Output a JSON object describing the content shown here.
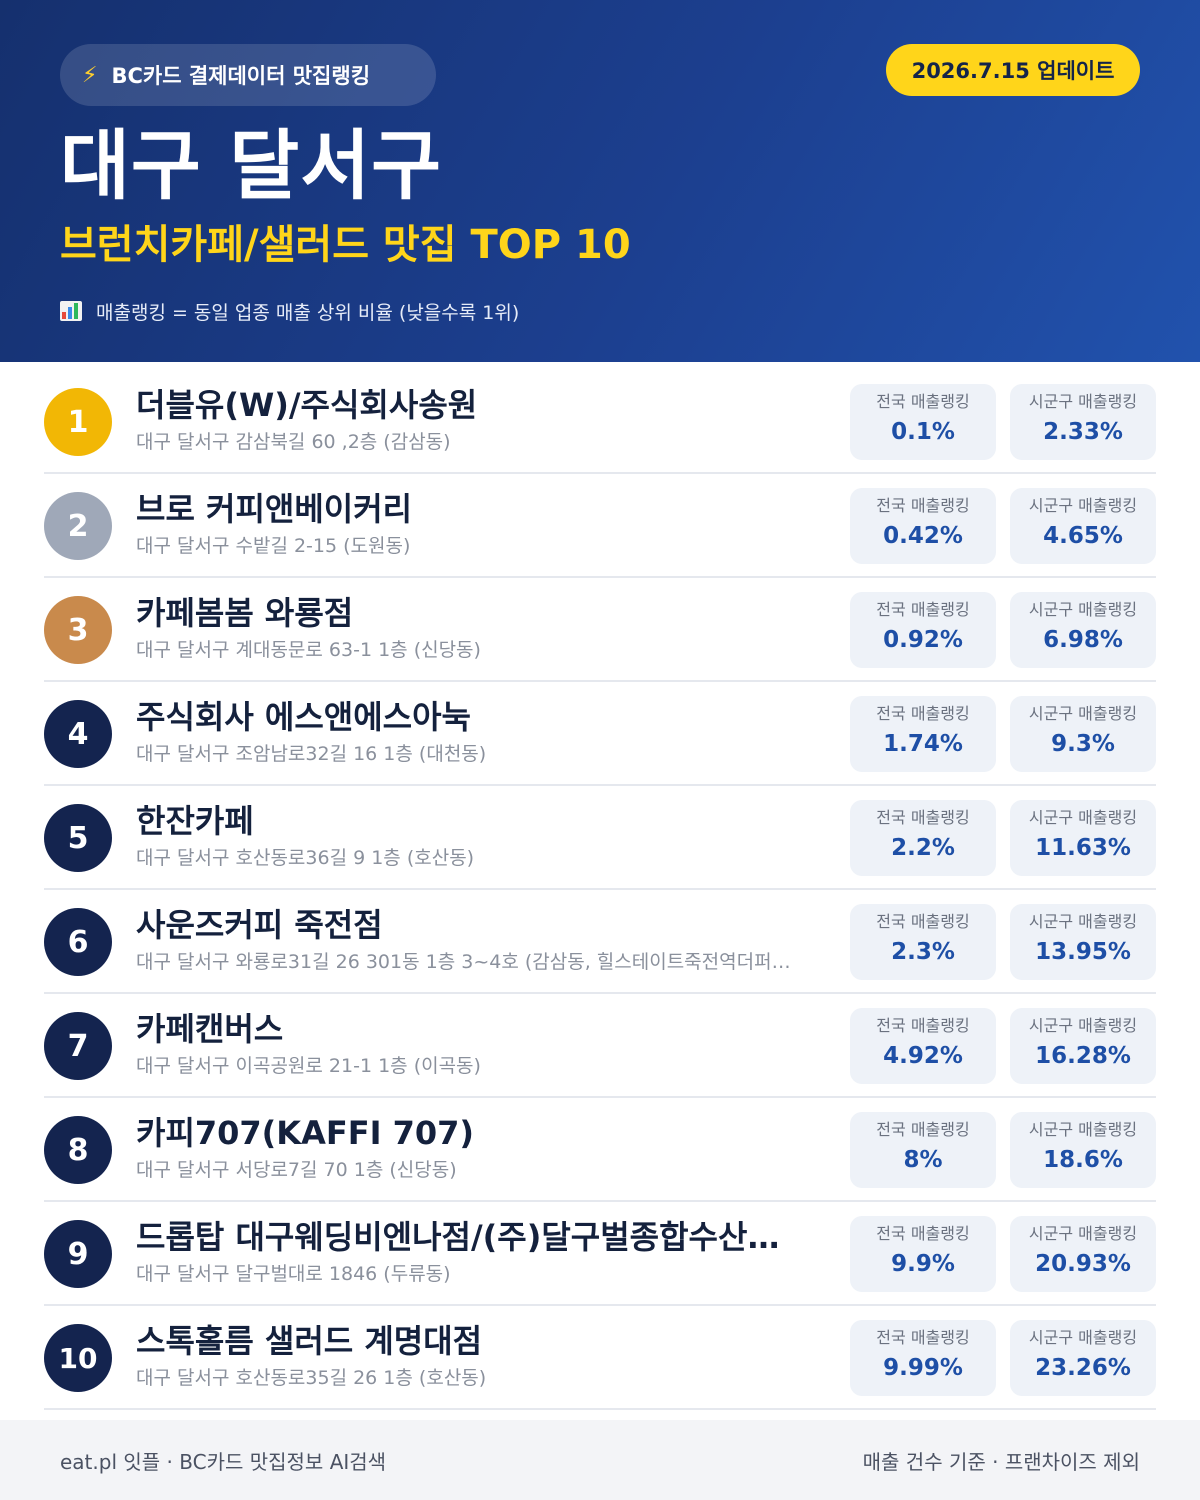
{
  "header": {
    "source_label": "BC카드 결제데이터 맛집랭킹",
    "update_label": "2026.7.15 업데이트",
    "title": "대구 달서구",
    "subtitle": "브런치카페/샐러드 맛집 TOP 10",
    "legend": "매출랭킹 = 동일 업종 매출 상위 비율 (낮을수록 1위)",
    "icons": {
      "source": "lightning-icon",
      "legend": "bar-chart-icon"
    }
  },
  "stat_labels": {
    "national": "전국 매출랭킹",
    "regional": "시군구 매출랭킹"
  },
  "colors": {
    "gold": "#f2b705",
    "silver": "#9fa8b8",
    "bronze": "#c98a4c",
    "navy": "#14244f",
    "accent_yellow": "#ffd51a",
    "value_blue": "#1e4fa6"
  },
  "ranking": [
    {
      "rank": "1",
      "name": "더블유(W)/주식회사송원",
      "address": "대구 달서구 감삼북길 60 ,2층 (감삼동)",
      "national": "0.1%",
      "regional": "2.33%",
      "badge": "gold"
    },
    {
      "rank": "2",
      "name": "브로 커피앤베이커리",
      "address": "대구 달서구 수밭길 2-15 (도원동)",
      "national": "0.42%",
      "regional": "4.65%",
      "badge": "silver"
    },
    {
      "rank": "3",
      "name": "카페봄봄 와룡점",
      "address": "대구 달서구 계대동문로 63-1 1층 (신당동)",
      "national": "0.92%",
      "regional": "6.98%",
      "badge": "bronze"
    },
    {
      "rank": "4",
      "name": "주식회사 에스앤에스아눅",
      "address": "대구 달서구 조암남로32길 16 1층 (대천동)",
      "national": "1.74%",
      "regional": "9.3%",
      "badge": "navy"
    },
    {
      "rank": "5",
      "name": "한잔카페",
      "address": "대구 달서구 호산동로36길 9 1층 (호산동)",
      "national": "2.2%",
      "regional": "11.63%",
      "badge": "navy"
    },
    {
      "rank": "6",
      "name": "사운즈커피 죽전점",
      "address": "대구 달서구 와룡로31길 26 301동 1층 3~4호 (감삼동, 힐스테이트죽전역더퍼…",
      "national": "2.3%",
      "regional": "13.95%",
      "badge": "navy"
    },
    {
      "rank": "7",
      "name": "카페캔버스",
      "address": "대구 달서구 이곡공원로 21-1 1층 (이곡동)",
      "national": "4.92%",
      "regional": "16.28%",
      "badge": "navy"
    },
    {
      "rank": "8",
      "name": "카피707(KAFFI 707)",
      "address": "대구 달서구 서당로7길 70 1층 (신당동)",
      "national": "8%",
      "regional": "18.6%",
      "badge": "navy"
    },
    {
      "rank": "9",
      "name": "드롭탑 대구웨딩비엔나점/(주)달구벌종합수산…",
      "address": "대구 달서구 달구벌대로 1846 (두류동)",
      "national": "9.9%",
      "regional": "20.93%",
      "badge": "navy"
    },
    {
      "rank": "10",
      "name": "스톡홀름 샐러드 계명대점",
      "address": "대구 달서구 호산동로35길 26 1층 (호산동)",
      "national": "9.99%",
      "regional": "23.26%",
      "badge": "navy"
    }
  ],
  "footer": {
    "left": "eat.pl 잇플 · BC카드 맛집정보 AI검색",
    "right": "매출 건수 기준 · 프랜차이즈 제외"
  }
}
